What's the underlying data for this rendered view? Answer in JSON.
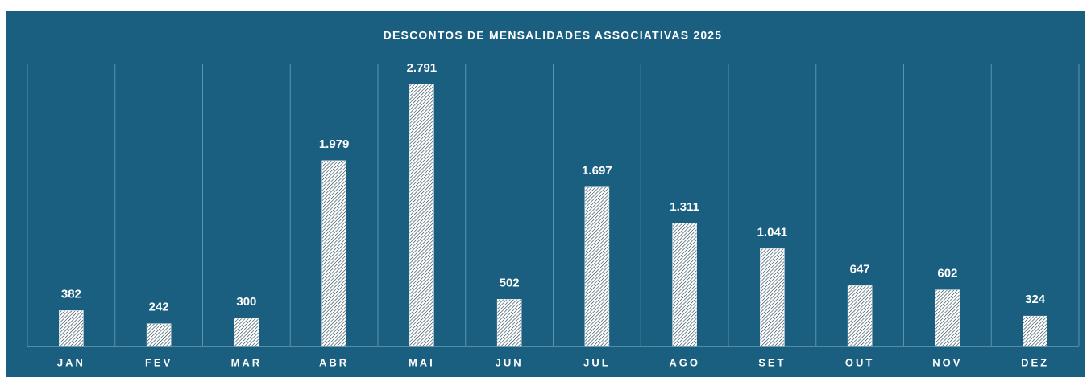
{
  "chart_data": {
    "type": "bar",
    "title": "DESCONTOS DE MENSALIDADES ASSOCIATIVAS 2025",
    "categories": [
      "JAN",
      "FEV",
      "MAR",
      "ABR",
      "MAI",
      "JUN",
      "JUL",
      "AGO",
      "SET",
      "OUT",
      "NOV",
      "DEZ"
    ],
    "values": [
      382,
      242,
      300,
      1979,
      2791,
      502,
      1697,
      1311,
      1041,
      647,
      602,
      324
    ],
    "value_labels": [
      "382",
      "242",
      "300",
      "1.979",
      "2.791",
      "502",
      "1.697",
      "1.311",
      "1.041",
      "647",
      "602",
      "324"
    ],
    "value_label_colors": [
      "#ffffff",
      "#ffffff",
      "#ffffff",
      "#ffff00",
      "#ffff00",
      "#ffffff",
      "#ffff00",
      "#ffffff",
      "#ffffff",
      "#ffffff",
      "#ffffff",
      "#ffffff"
    ],
    "color": "#ffffff",
    "background": "#1a5f80",
    "grid": true
  }
}
